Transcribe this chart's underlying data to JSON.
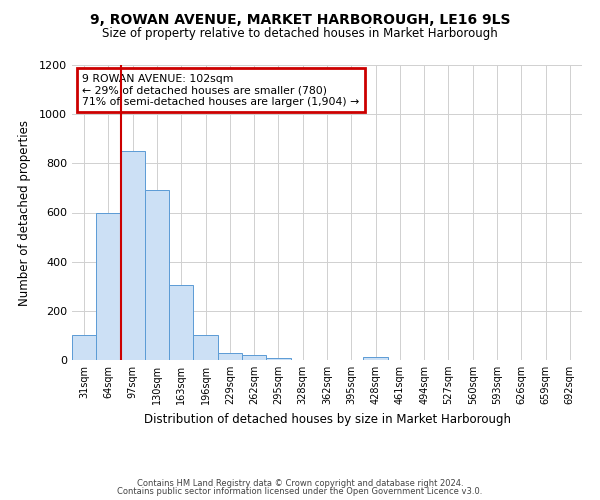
{
  "title1": "9, ROWAN AVENUE, MARKET HARBOROUGH, LE16 9LS",
  "title2": "Size of property relative to detached houses in Market Harborough",
  "xlabel": "Distribution of detached houses by size in Market Harborough",
  "ylabel": "Number of detached properties",
  "footer1": "Contains HM Land Registry data © Crown copyright and database right 2024.",
  "footer2": "Contains public sector information licensed under the Open Government Licence v3.0.",
  "bar_labels": [
    "31sqm",
    "64sqm",
    "97sqm",
    "130sqm",
    "163sqm",
    "196sqm",
    "229sqm",
    "262sqm",
    "295sqm",
    "328sqm",
    "362sqm",
    "395sqm",
    "428sqm",
    "461sqm",
    "494sqm",
    "527sqm",
    "560sqm",
    "593sqm",
    "626sqm",
    "659sqm",
    "692sqm"
  ],
  "bar_values": [
    100,
    600,
    850,
    690,
    305,
    100,
    30,
    22,
    10,
    0,
    0,
    0,
    12,
    0,
    0,
    0,
    0,
    0,
    0,
    0,
    0
  ],
  "bar_color": "#cce0f5",
  "bar_edge_color": "#5b9bd5",
  "highlight_index": 2,
  "annotation_line1": "9 ROWAN AVENUE: 102sqm",
  "annotation_line2": "← 29% of detached houses are smaller (780)",
  "annotation_line3": "71% of semi-detached houses are larger (1,904) →",
  "vline_index": 2,
  "ylim": [
    0,
    1200
  ],
  "yticks": [
    0,
    200,
    400,
    600,
    800,
    1000,
    1200
  ],
  "bg_color": "#ffffff",
  "grid_color": "#d0d0d0",
  "annotation_box_facecolor": "#ffffff",
  "annotation_box_edgecolor": "#cc0000",
  "vline_color": "#cc0000"
}
